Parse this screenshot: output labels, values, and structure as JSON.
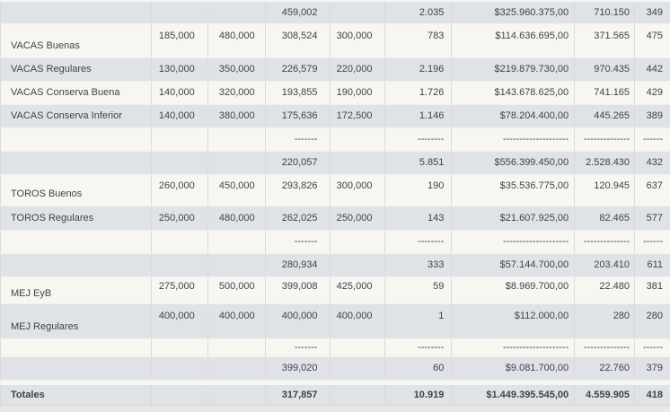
{
  "colors": {
    "row_shaded": "#dfe2e7",
    "row_plain": "#f7f6f1",
    "text": "#3f434a",
    "grid_line": "#d9dadb",
    "row_separator": "#f2f1ed",
    "bottom_margin": "#e9e8e4"
  },
  "table": {
    "rows": [
      {
        "name": "previous-group-subtotal-row",
        "cells": [
          "",
          "",
          "",
          "459,002",
          "",
          "2.035",
          "$325.960.375,00",
          "710.150",
          "349"
        ]
      },
      {
        "name": "vacas-buenas-row",
        "cells": [
          "VACAS Buenas",
          "185,000",
          "480,000",
          "308,524",
          "300,000",
          "783",
          "$114.636.695,00",
          "371.565",
          "475"
        ]
      },
      {
        "name": "vacas-regulares-row",
        "cells": [
          "VACAS Regulares",
          "130,000",
          "350,000",
          "226,579",
          "220,000",
          "2.196",
          "$219.879.730,00",
          "970.435",
          "442"
        ]
      },
      {
        "name": "vacas-conserva-buena-row",
        "cells": [
          "VACAS Conserva Buena",
          "140,000",
          "320,000",
          "193,855",
          "190,000",
          "1.726",
          "$143.678.625,00",
          "741.165",
          "429"
        ]
      },
      {
        "name": "vacas-conserva-inferior-row",
        "cells": [
          "VACAS Conserva Inferior",
          "140,000",
          "380,000",
          "175,636",
          "172,500",
          "1.146",
          "$78.204.400,00",
          "445.265",
          "389"
        ]
      },
      {
        "name": "separator-dashes-row",
        "cells": [
          "",
          "",
          "",
          "-------",
          "",
          "--------",
          "--------------------",
          "--------------",
          "------"
        ]
      },
      {
        "name": "vacas-subtotal-row",
        "cells": [
          "",
          "",
          "",
          "220,057",
          "",
          "5.851",
          "$556.399.450,00",
          "2.528.430",
          "432"
        ]
      },
      {
        "name": "toros-buenos-row",
        "cells": [
          "TOROS Buenos",
          "260,000",
          "450,000",
          "293,826",
          "300,000",
          "190",
          "$35.536.775,00",
          "120.945",
          "637"
        ]
      },
      {
        "name": "toros-regulares-row",
        "cells": [
          "TOROS Regulares",
          "250,000",
          "480,000",
          "262,025",
          "250,000",
          "143",
          "$21.607.925,00",
          "82.465",
          "577"
        ]
      },
      {
        "name": "separator-dashes-row",
        "cells": [
          "",
          "",
          "",
          "-------",
          "",
          "--------",
          "--------------------",
          "--------------",
          "------"
        ]
      },
      {
        "name": "toros-subtotal-row",
        "cells": [
          "",
          "",
          "",
          "280,934",
          "",
          "333",
          "$57.144.700,00",
          "203.410",
          "611"
        ]
      },
      {
        "name": "mej-eyb-row",
        "cells": [
          "MEJ EyB",
          "275,000",
          "500,000",
          "399,008",
          "425,000",
          "59",
          "$8.969.700,00",
          "22.480",
          "381"
        ]
      },
      {
        "name": "mej-regulares-row",
        "cells": [
          "MEJ Regulares",
          "400,000",
          "400,000",
          "400,000",
          "400,000",
          "1",
          "$112.000,00",
          "280",
          "280"
        ]
      },
      {
        "name": "separator-dashes-row",
        "cells": [
          "",
          "",
          "",
          "-------",
          "",
          "--------",
          "--------------------",
          "--------------",
          "------"
        ]
      },
      {
        "name": "mej-subtotal-row",
        "cells": [
          "",
          "",
          "",
          "399,020",
          "",
          "60",
          "$9.081.700,00",
          "22.760",
          "379"
        ]
      }
    ],
    "total_row": {
      "name": "totals-row",
      "cells": [
        "Totales",
        "",
        "",
        "317,857",
        "",
        "10.919",
        "$1.449.395.545,00",
        "4.559.905",
        "418"
      ]
    }
  }
}
